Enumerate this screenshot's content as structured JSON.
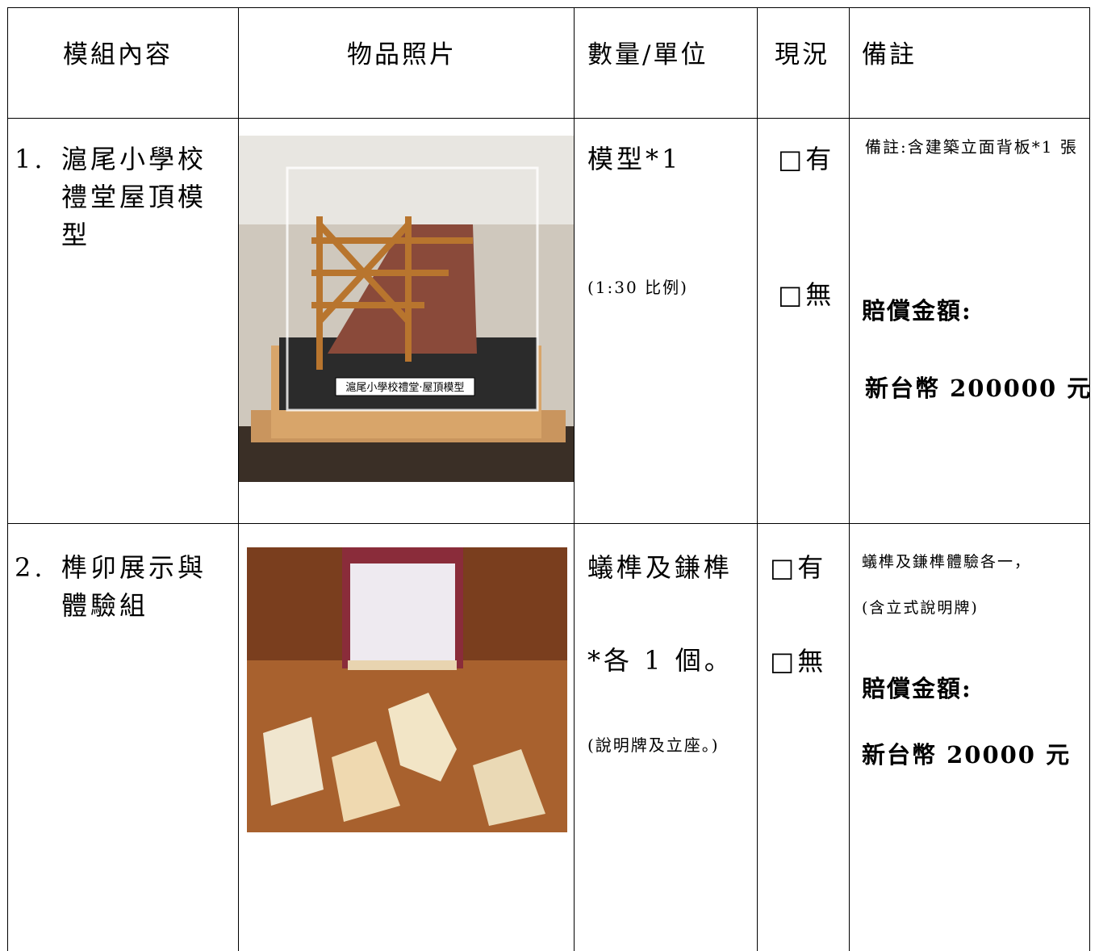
{
  "table": {
    "headers": [
      "模組內容",
      "物品照片",
      "數量/單位",
      "現況",
      "備註"
    ],
    "rows": [
      {
        "number": "1.",
        "name": "滬尾小學校禮堂屋頂模型",
        "photo_label": "滬尾小學校禮堂‧屋頂模型",
        "quantity": [
          "模型*1",
          "(1:30 比例)"
        ],
        "status": [
          "□有",
          "□無"
        ],
        "notes": [
          "備註:含建築立面背板*1 張",
          "賠償金額:",
          "新台幣 200000 元"
        ]
      },
      {
        "number": "2.",
        "name": "榫卯展示與體驗組",
        "quantity": [
          "蟻榫及鎌榫",
          "*各 1 個。",
          "(說明牌及立座。)"
        ],
        "status": [
          "□有",
          "□無"
        ],
        "notes": [
          "蟻榫及鎌榫體驗各一，",
          "(含立式說明牌)",
          "賠償金額:",
          "新台幣 20000 元"
        ]
      }
    ]
  }
}
